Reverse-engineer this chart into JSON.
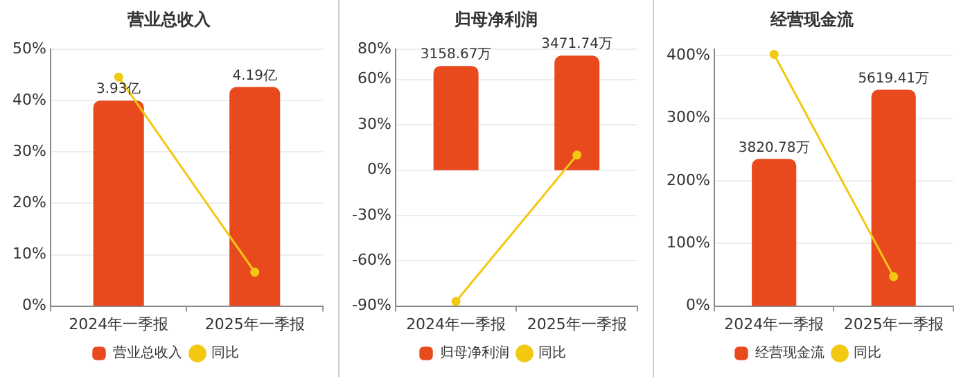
{
  "chart_data": [
    {
      "type": "bar",
      "title": "营业总收入",
      "categories": [
        "2024年一季报",
        "2025年一季报"
      ],
      "series": [
        {
          "name": "营业总收入",
          "color": "#e84a1e",
          "values": [
            3.93,
            4.19
          ],
          "value_labels": [
            "3.93亿",
            "4.19亿"
          ],
          "axis": "y2"
        },
        {
          "name": "同比",
          "type": "line",
          "color": "#f2c811",
          "values": [
            44.6,
            6.6
          ]
        }
      ],
      "ylim": [
        0,
        50
      ],
      "yticks": [
        {
          "value": 0,
          "label": "0%"
        },
        {
          "value": 10,
          "label": "10%"
        },
        {
          "value": 20,
          "label": "20%"
        },
        {
          "value": 30,
          "label": "30%"
        },
        {
          "value": 40,
          "label": "40%"
        },
        {
          "value": 50,
          "label": "50%"
        }
      ],
      "y2lim": [
        0,
        4.91
      ],
      "grid": "y",
      "legend": "bottom",
      "marker": "circle"
    },
    {
      "type": "bar",
      "title": "归母净利润",
      "categories": [
        "2024年一季报",
        "2025年一季报"
      ],
      "series": [
        {
          "name": "归母净利润",
          "color": "#e84a1e",
          "values": [
            3158.67,
            3471.74
          ],
          "value_labels": [
            "3158.67万",
            "3471.74万"
          ],
          "axis": "y2"
        },
        {
          "name": "同比",
          "type": "line",
          "color": "#f2c811",
          "values": [
            -87,
            10
          ]
        }
      ],
      "ylim": [
        -90,
        80
      ],
      "yticks": [
        {
          "value": -90,
          "label": "-90%"
        },
        {
          "value": -60,
          "label": "-60%"
        },
        {
          "value": -30,
          "label": "-30%"
        },
        {
          "value": 0,
          "label": "0%"
        },
        {
          "value": 30,
          "label": "30%"
        },
        {
          "value": 60,
          "label": "60%"
        },
        {
          "value": 80,
          "label": "80%"
        }
      ],
      "y2lim": [
        -4120,
        3662
      ],
      "grid": "y",
      "legend": "bottom",
      "marker": "circle"
    },
    {
      "type": "bar",
      "title": "经营现金流",
      "categories": [
        "2024年一季报",
        "2025年一季报"
      ],
      "series": [
        {
          "name": "经营现金流",
          "color": "#e84a1e",
          "values": [
            3820.78,
            5619.41
          ],
          "value_labels": [
            "3820.78万",
            "5619.41万"
          ],
          "axis": "y2"
        },
        {
          "name": "同比",
          "type": "line",
          "color": "#f2c811",
          "values": [
            402,
            47
          ]
        }
      ],
      "ylim": [
        0,
        410
      ],
      "yticks": [
        {
          "value": 0,
          "label": "0%"
        },
        {
          "value": 100,
          "label": "100%"
        },
        {
          "value": 200,
          "label": "200%"
        },
        {
          "value": 300,
          "label": "300%"
        },
        {
          "value": 400,
          "label": "400%"
        }
      ],
      "y2lim": [
        0,
        6667
      ],
      "grid": "y",
      "legend": "bottom",
      "marker": "circle"
    }
  ]
}
